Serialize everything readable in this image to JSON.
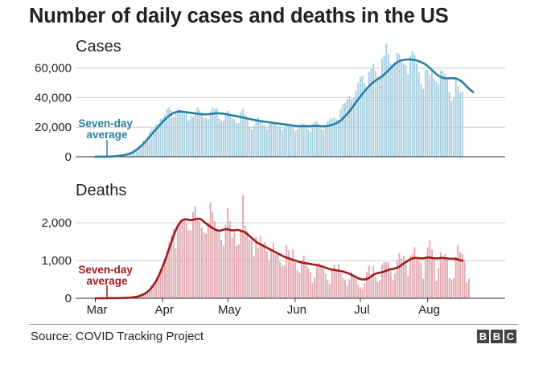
{
  "title": "Number of daily cases and deaths in the US",
  "source": "Source: COVID Tracking Project",
  "logo_letters": [
    "B",
    "B",
    "C"
  ],
  "colors": {
    "cases_bar": "#a7cfe0",
    "cases_line": "#2a7fa4",
    "deaths_bar": "#e0a9ad",
    "deaths_line": "#a11c1c",
    "grid": "#c9c9c9",
    "text": "#222222"
  },
  "chart_data": [
    {
      "type": "bar",
      "title": "Cases",
      "x_start": "Mar 1",
      "x_tick_labels": [
        "Mar",
        "Apr",
        "May",
        "Jun",
        "Jul",
        "Aug"
      ],
      "x_tick_days": [
        0,
        31,
        61,
        92,
        122,
        153
      ],
      "ylim": [
        0,
        75000
      ],
      "yticks": [
        0,
        20000,
        40000,
        60000
      ],
      "ytick_labels": [
        "0",
        "20,000",
        "40,000",
        "60,000"
      ],
      "annotation": [
        "Seven-day",
        "average"
      ],
      "series": [
        {
          "name": "Daily cases",
          "kind": "bar",
          "values": [
            4,
            6,
            12,
            30,
            48,
            66,
            110,
            140,
            190,
            300,
            450,
            610,
            800,
            1000,
            1270,
            1650,
            2250,
            3400,
            4300,
            5650,
            7000,
            7750,
            11100,
            11500,
            13800,
            17200,
            18900,
            19200,
            22100,
            22100,
            25600,
            26500,
            28600,
            32100,
            33500,
            31400,
            26500,
            30300,
            32300,
            31800,
            30000,
            29000,
            31200,
            24300,
            27500,
            26900,
            29900,
            33300,
            31600,
            30000,
            25900,
            26500,
            25500,
            30800,
            33300,
            32600,
            32800,
            26000,
            24300,
            24600,
            29000,
            31100,
            28700,
            26100,
            25300,
            22700,
            22900,
            30500,
            32300,
            28400,
            26500,
            20600,
            18500,
            21300,
            24600,
            26700,
            25000,
            21800,
            21400,
            18800,
            21900,
            23500,
            22600,
            23400,
            20600,
            20800,
            18100,
            19400,
            22500,
            21100,
            21300,
            19300,
            17300,
            18300,
            21200,
            22300,
            22300,
            21100,
            18200,
            17000,
            22300,
            24000,
            23800,
            20800,
            18900,
            18300,
            20000,
            24100,
            25300,
            25700,
            26800,
            25200,
            25000,
            32200,
            35500,
            36400,
            38800,
            41300,
            38800,
            39700,
            44900,
            50300,
            53800,
            54700,
            49600,
            46900,
            57400,
            59400,
            63100,
            58100,
            54300,
            52900,
            66600,
            68400,
            76600,
            69600,
            63200,
            61100,
            64100,
            70300,
            69100,
            65500,
            62900,
            61800,
            55800,
            68200,
            71300,
            69200,
            63100,
            56900,
            49200,
            45800,
            58800,
            58800,
            55300,
            58300,
            53000,
            50600,
            49000,
            58300,
            58100,
            55900,
            53600,
            44000,
            37800,
            40100,
            53000,
            47400,
            43400,
            44000
          ]
        },
        {
          "name": "Seven-day average",
          "kind": "line",
          "values": [
            20,
            25,
            30,
            40,
            55,
            75,
            110,
            150,
            220,
            320,
            460,
            640,
            860,
            1100,
            1400,
            1800,
            2300,
            2900,
            3800,
            4800,
            5900,
            7100,
            8500,
            10100,
            11800,
            13500,
            15300,
            17000,
            18700,
            20400,
            22000,
            23600,
            25100,
            26500,
            27800,
            28800,
            29600,
            30200,
            30500,
            30600,
            30500,
            30300,
            30100,
            29900,
            29700,
            29500,
            29300,
            29100,
            28900,
            28800,
            28700,
            28700,
            28800,
            28900,
            29100,
            29300,
            29400,
            29400,
            29300,
            29100,
            28900,
            28600,
            28300,
            28000,
            27700,
            27400,
            27100,
            26800,
            26500,
            26200,
            25900,
            25600,
            25300,
            25000,
            24700,
            24400,
            24100,
            23900,
            23700,
            23500,
            23300,
            23100,
            22900,
            22700,
            22500,
            22300,
            22100,
            21900,
            21700,
            21500,
            21300,
            21100,
            20900,
            20800,
            20700,
            20700,
            20700,
            20700,
            20700,
            20700,
            20800,
            20900,
            20900,
            20800,
            20700,
            20600,
            20700,
            20900,
            21200,
            21600,
            22100,
            22700,
            23500,
            24600,
            25900,
            27400,
            29000,
            30800,
            32700,
            34700,
            36700,
            38700,
            40700,
            42600,
            44400,
            46100,
            47700,
            49100,
            50400,
            51500,
            52500,
            53400,
            54400,
            55600,
            57000,
            58500,
            60000,
            61500,
            62800,
            63900,
            64700,
            65200,
            65500,
            65700,
            65800,
            65800,
            65700,
            65500,
            65100,
            64600,
            64000,
            63300,
            62400,
            61300,
            60000,
            58600,
            57200,
            55900,
            54800,
            53900,
            53400,
            53100,
            53000,
            53000,
            53100,
            53100,
            52900,
            52400,
            51600,
            50500,
            49100,
            47600,
            46100,
            44800,
            43800
          ]
        }
      ]
    },
    {
      "type": "bar",
      "title": "Deaths",
      "x_start": "Mar 1",
      "x_tick_labels": [
        "Mar",
        "Apr",
        "May",
        "Jun",
        "Jul",
        "Aug"
      ],
      "x_tick_days": [
        0,
        31,
        61,
        92,
        122,
        153
      ],
      "ylim": [
        0,
        2750
      ],
      "yticks": [
        0,
        1000,
        2000
      ],
      "ytick_labels": [
        "0",
        "1,000",
        "2,000"
      ],
      "annotation": [
        "Seven-day",
        "average"
      ],
      "series": [
        {
          "name": "Daily deaths",
          "kind": "bar",
          "values": [
            1,
            0,
            1,
            2,
            1,
            2,
            3,
            4,
            5,
            5,
            7,
            8,
            9,
            11,
            14,
            17,
            22,
            30,
            40,
            55,
            70,
            100,
            130,
            160,
            200,
            250,
            350,
            400,
            480,
            580,
            780,
            900,
            1050,
            1250,
            1480,
            1680,
            1840,
            1330,
            1880,
            2000,
            2040,
            2050,
            1990,
            1800,
            1800,
            2280,
            2450,
            2120,
            2040,
            1870,
            1750,
            1710,
            2010,
            2550,
            2300,
            2040,
            1840,
            1780,
            1550,
            1400,
            1940,
            2400,
            2040,
            1610,
            1750,
            1390,
            1430,
            1800,
            2730,
            1920,
            1780,
            1550,
            1570,
            1120,
            1620,
            1330,
            1650,
            1450,
            1490,
            1250,
            1020,
            1310,
            1470,
            1170,
            1220,
            970,
            870,
            860,
            1400,
            1270,
            1000,
            1310,
            960,
            750,
            680,
            1000,
            1130,
            940,
            810,
            690,
            400,
            560,
            850,
            930,
            880,
            780,
            660,
            480,
            370,
            760,
            880,
            700,
            900,
            660,
            550,
            490,
            340,
            500,
            700,
            620,
            520,
            360,
            290,
            250,
            400,
            700,
            870,
            640,
            850,
            580,
            430,
            480,
            900,
            960,
            950,
            960,
            720,
            480,
            660,
            1010,
            1200,
            1060,
            1120,
            900,
            600,
            1130,
            1180,
            1360,
            1040,
            980,
            930,
            520,
            1090,
            1350,
            1540,
            1290,
            1090,
            460,
            810,
            1210,
            1040,
            1170,
            1050,
            530,
            500,
            540,
            1100,
            1410,
            1210,
            1170,
            1020,
            410,
            520
          ]
        },
        {
          "name": "Seven-day average",
          "kind": "line",
          "values": [
            0,
            0,
            1,
            1,
            1,
            2,
            2,
            3,
            3,
            4,
            5,
            6,
            7,
            9,
            11,
            14,
            18,
            23,
            30,
            40,
            55,
            75,
            100,
            130,
            170,
            220,
            290,
            370,
            460,
            570,
            700,
            840,
            990,
            1150,
            1320,
            1490,
            1650,
            1800,
            1920,
            2010,
            2070,
            2090,
            2090,
            2080,
            2070,
            2080,
            2100,
            2110,
            2110,
            2080,
            2030,
            1980,
            1940,
            1900,
            1860,
            1830,
            1800,
            1790,
            1800,
            1820,
            1830,
            1830,
            1810,
            1800,
            1800,
            1810,
            1810,
            1790,
            1770,
            1750,
            1700,
            1650,
            1600,
            1550,
            1500,
            1460,
            1430,
            1400,
            1370,
            1340,
            1310,
            1280,
            1250,
            1220,
            1190,
            1160,
            1130,
            1100,
            1080,
            1060,
            1040,
            1020,
            1000,
            980,
            960,
            950,
            940,
            930,
            920,
            910,
            900,
            890,
            880,
            870,
            850,
            830,
            810,
            790,
            770,
            760,
            750,
            740,
            730,
            720,
            710,
            690,
            670,
            650,
            620,
            590,
            560,
            530,
            510,
            500,
            500,
            510,
            540,
            580,
            620,
            650,
            670,
            680,
            690,
            710,
            730,
            750,
            770,
            780,
            790,
            810,
            840,
            880,
            920,
            960,
            1000,
            1030,
            1060,
            1070,
            1070,
            1060,
            1060,
            1060,
            1070,
            1080,
            1080,
            1070,
            1060,
            1060,
            1060,
            1070,
            1070,
            1060,
            1060,
            1050,
            1050,
            1050,
            1040,
            1030,
            1010,
            1000
          ]
        }
      ]
    }
  ]
}
